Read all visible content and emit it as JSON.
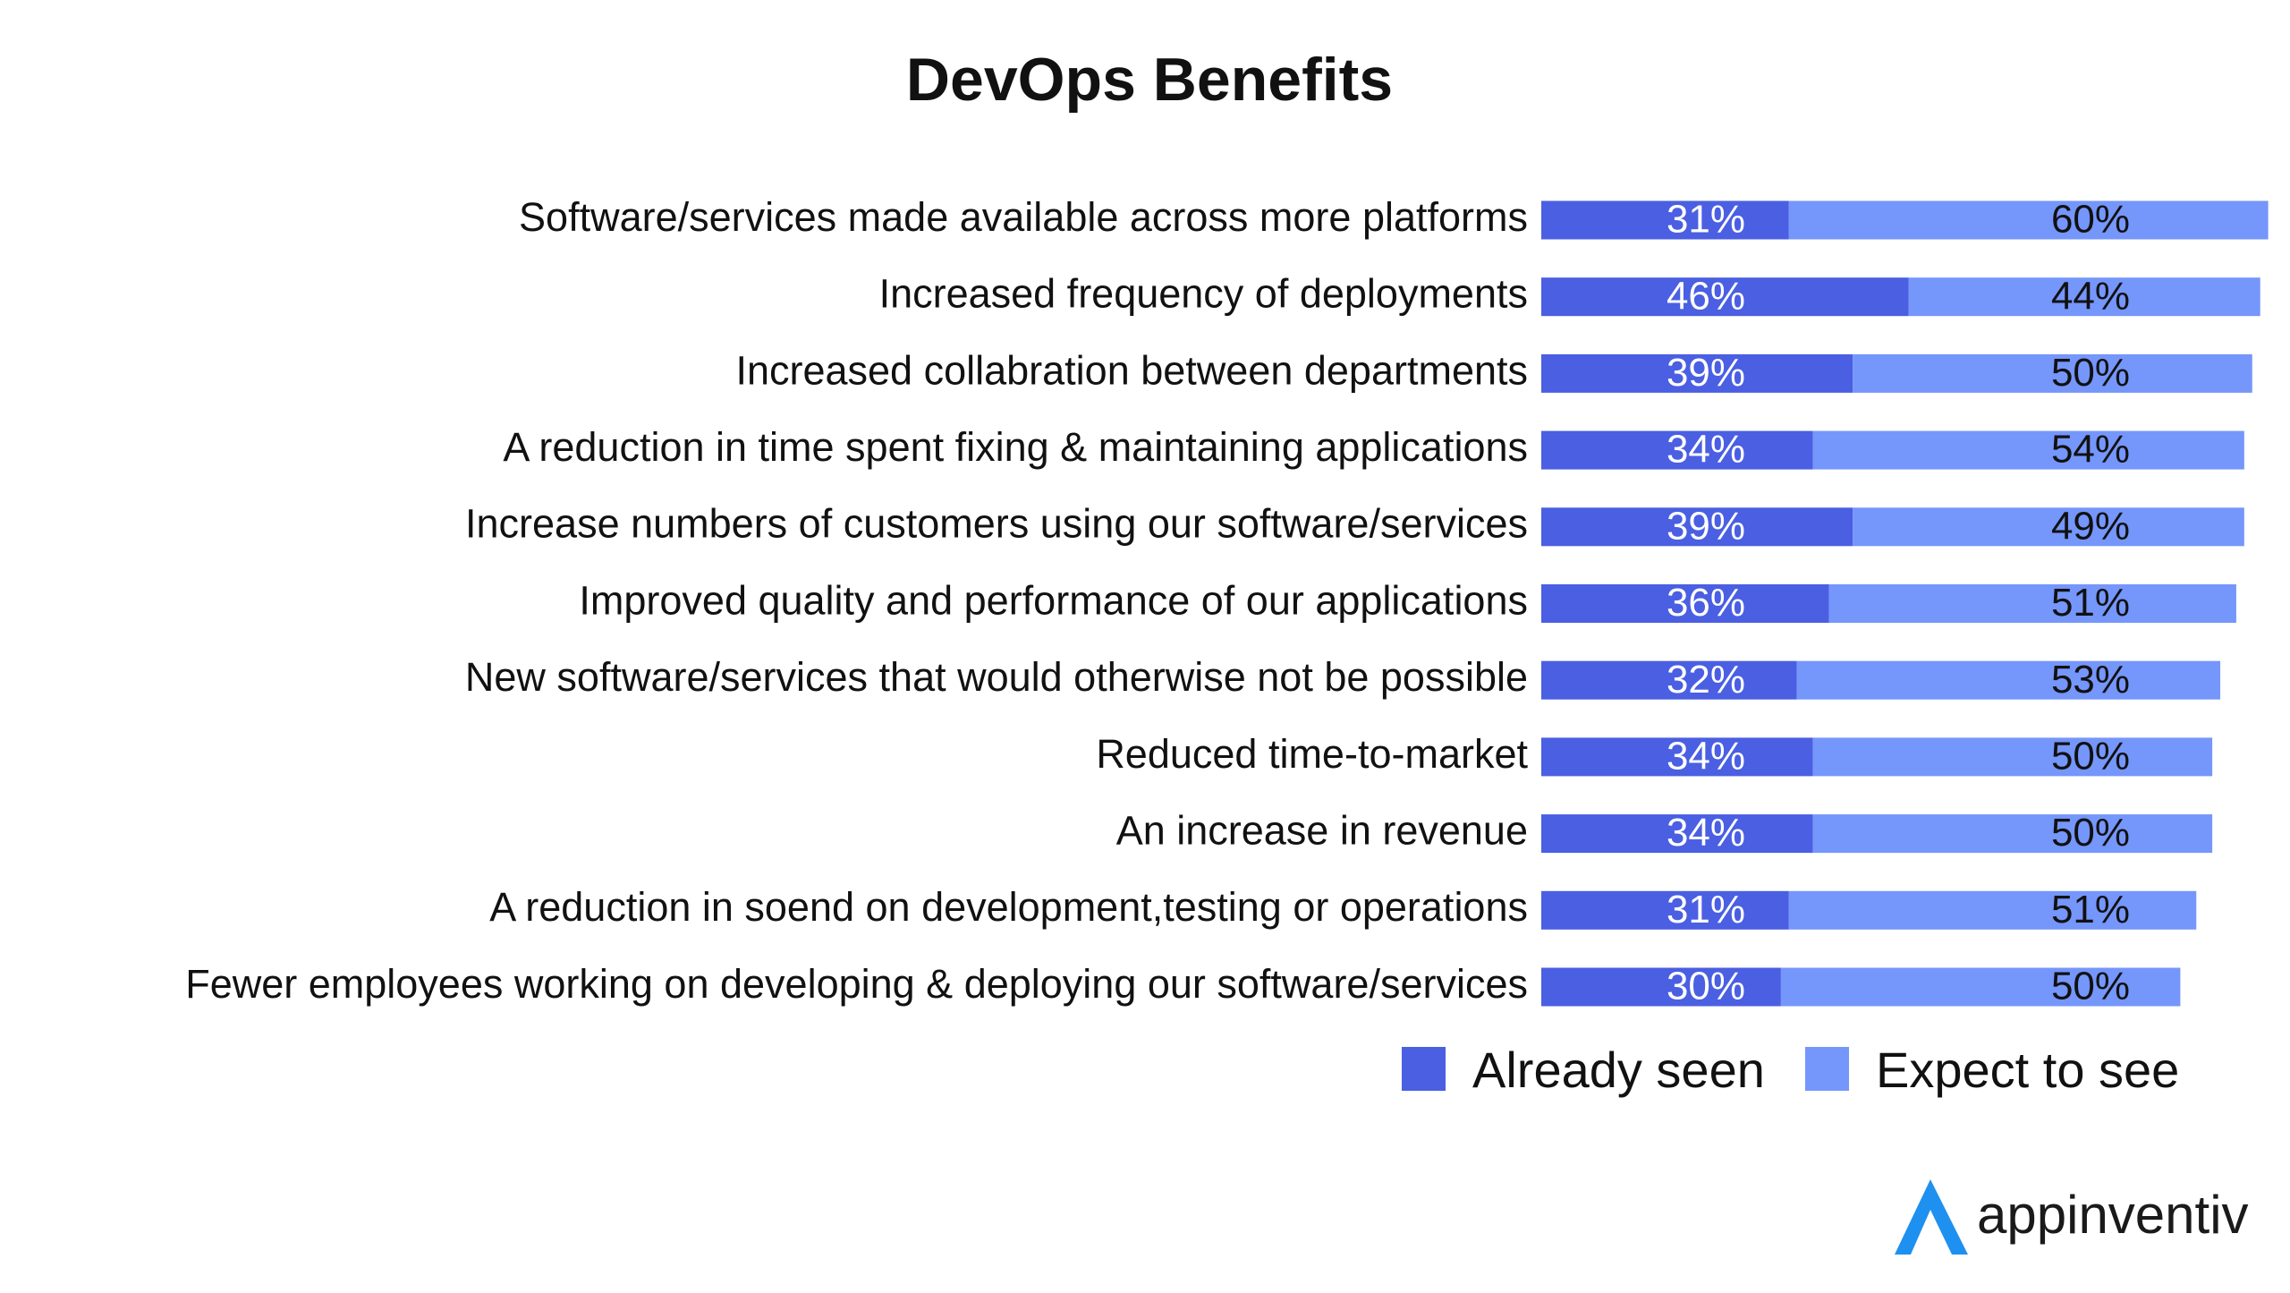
{
  "chart_data": {
    "type": "stacked-bar",
    "orientation": "horizontal",
    "title": "DevOps Benefits",
    "categories": [
      "Software/services made available across more platforms",
      "Increased frequency of deployments",
      "Increased collabration between departments",
      "A reduction in time spent fixing & maintaining applications",
      "Increase numbers of customers using our software/services",
      "Improved quality and performance of our applications",
      "New software/services that would otherwise not be possible",
      "Reduced time-to-market",
      "An increase in revenue",
      "A reduction in soend on development,testing or operations",
      "Fewer employees working on developing & deploying our software/services"
    ],
    "series": [
      {
        "name": "Already seen",
        "color": "#4a5fe2",
        "label_color": "#ffffff",
        "values": [
          31,
          46,
          39,
          34,
          39,
          36,
          32,
          34,
          34,
          31,
          30
        ],
        "value_labels": [
          "31%",
          "46%",
          "39%",
          "34%",
          "39%",
          "36%",
          "32%",
          "34%",
          "34%",
          "31%",
          "30%"
        ]
      },
      {
        "name": "Expect to see",
        "color": "#7596fb",
        "label_color": "#111111",
        "values": [
          60,
          44,
          50,
          54,
          49,
          51,
          53,
          50,
          50,
          51,
          50
        ],
        "value_labels": [
          "60%",
          "44%",
          "50%",
          "54%",
          "49%",
          "51%",
          "53%",
          "50%",
          "50%",
          "51%",
          "50%"
        ]
      }
    ]
  },
  "logo": "appinventiv"
}
